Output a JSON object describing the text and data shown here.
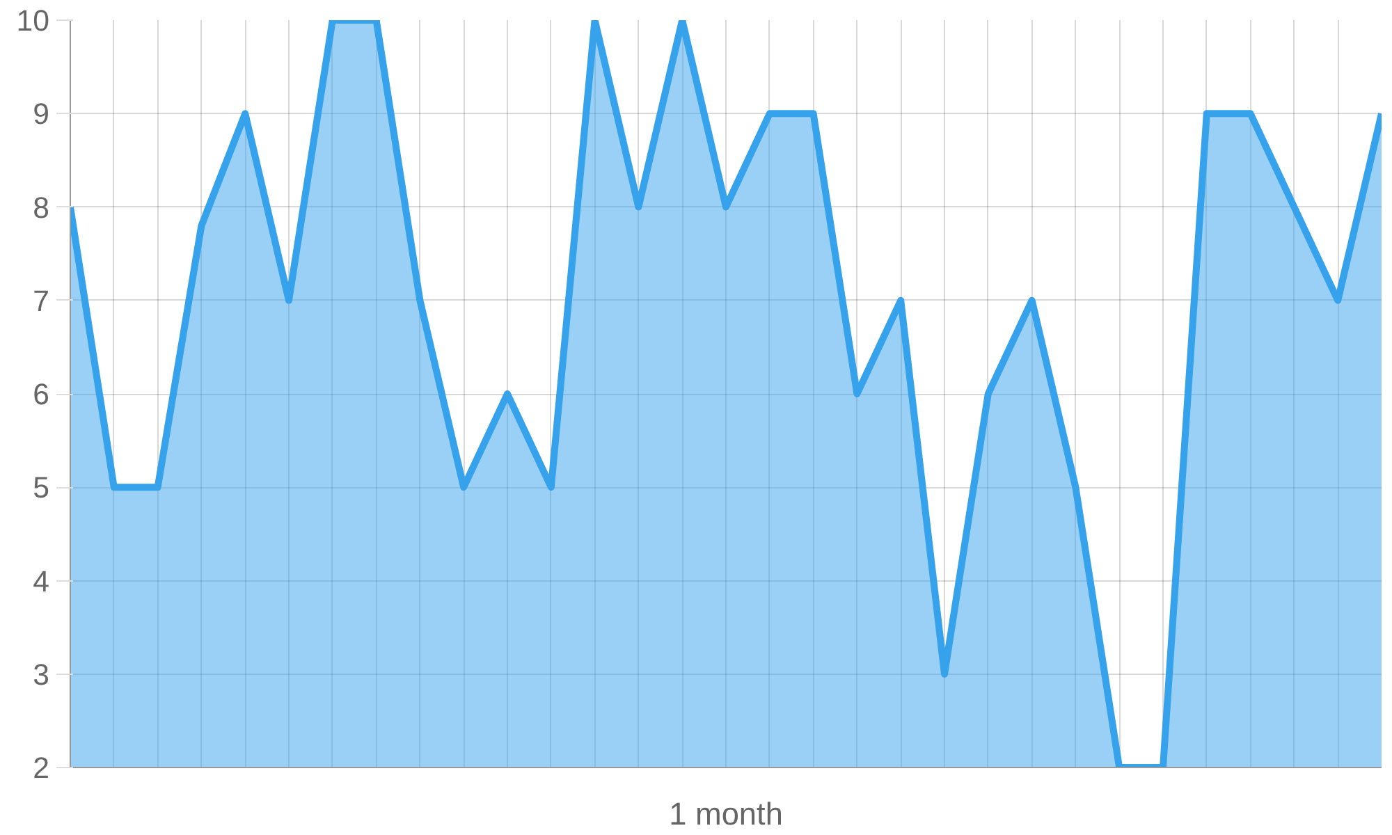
{
  "chart_data": {
    "type": "area",
    "xlabel": "1 month",
    "categories": [
      null,
      null,
      null,
      null,
      null,
      null,
      null,
      null,
      null,
      null,
      null,
      null,
      null,
      null,
      null,
      null,
      null,
      null,
      null,
      null,
      null,
      null,
      null,
      null,
      null,
      null,
      null,
      null,
      null,
      null,
      null
    ],
    "series": [
      {
        "color": "#36a2eb",
        "values": [
          8,
          5,
          5,
          7.8,
          9,
          7,
          10,
          10,
          7,
          5,
          6,
          5,
          10,
          8,
          10,
          8,
          9,
          9,
          6,
          7,
          3,
          6,
          7,
          5,
          2,
          2,
          9,
          9,
          8,
          7,
          9
        ]
      }
    ],
    "ylim": [
      2,
      10
    ],
    "yticks": [
      2,
      3,
      4,
      5,
      6,
      7,
      8,
      9,
      10
    ],
    "grid": true,
    "marker": "none",
    "line_style": "solid"
  }
}
